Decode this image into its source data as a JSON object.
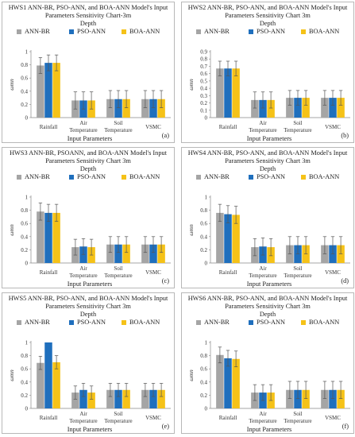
{
  "legend": [
    "ANN-BR",
    "PSO-ANN",
    "BOA-ANN"
  ],
  "colors": {
    "ANN-BR": "#a5a5a5",
    "PSO-ANN": "#1f6fbd",
    "BOA-ANN": "#f5c218"
  },
  "chart_data": [
    {
      "type": "bar",
      "title": "HWS1 ANN-BR, PSO-ANN, and BOA-ANN Model's Input Parameters Sensitivity Chart-3m",
      "subtitle": "Depth",
      "xlabel": "Input Parameters",
      "ylabel": "ωmn",
      "panel_label": "(a)",
      "ylim": [
        0,
        1
      ],
      "yticks": [
        "0",
        "0.2",
        "0.4",
        "0.6",
        "0.8",
        "1"
      ],
      "categories": [
        "Rainfall",
        "Air Temperature",
        "Soil Temperature",
        "VSMC"
      ],
      "series": [
        {
          "name": "ANN-BR",
          "values": [
            0.79,
            0.26,
            0.28,
            0.28
          ],
          "errors": [
            0.12,
            0.13,
            0.13,
            0.13
          ]
        },
        {
          "name": "PSO-ANN",
          "values": [
            0.83,
            0.26,
            0.28,
            0.28
          ],
          "errors": [
            0.12,
            0.13,
            0.13,
            0.13
          ]
        },
        {
          "name": "BOA-ANN",
          "values": [
            0.83,
            0.26,
            0.28,
            0.28
          ],
          "errors": [
            0.12,
            0.13,
            0.13,
            0.13
          ]
        }
      ]
    },
    {
      "type": "bar",
      "title": "HWS2 ANN-BR, PSO-ANN, and BOA-ANN Model's Input Parameters Sensitivity Chart 3m",
      "subtitle": "Depth",
      "xlabel": "Input Parameters",
      "ylabel": "ωmn",
      "panel_label": "(b)",
      "ylim": [
        0,
        0.9
      ],
      "yticks": [
        "0",
        "0.1",
        "0.2",
        "0.3",
        "0.4",
        "0.5",
        "0.6",
        "0.7",
        "0.8",
        "0.9"
      ],
      "categories": [
        "Rainfall",
        "Air Temperature",
        "Soil Temperature",
        "VSMC"
      ],
      "series": [
        {
          "name": "ANN-BR",
          "values": [
            0.67,
            0.24,
            0.27,
            0.27
          ],
          "errors": [
            0.1,
            0.11,
            0.1,
            0.1
          ]
        },
        {
          "name": "PSO-ANN",
          "values": [
            0.67,
            0.24,
            0.27,
            0.27
          ],
          "errors": [
            0.1,
            0.11,
            0.1,
            0.1
          ]
        },
        {
          "name": "BOA-ANN",
          "values": [
            0.67,
            0.24,
            0.27,
            0.27
          ],
          "errors": [
            0.1,
            0.11,
            0.1,
            0.1
          ]
        }
      ]
    },
    {
      "type": "bar",
      "title": "HWS3 ANN-BR, PSOANN, and BOA-ANN Model's Input Parameters Sensitivity Chart 3m",
      "subtitle": "Depth",
      "xlabel": "Input Parameters",
      "ylabel": "ωmn",
      "panel_label": "(c)",
      "ylim": [
        0,
        1
      ],
      "yticks": [
        "0",
        "0.2",
        "0.4",
        "0.6",
        "0.8",
        "1"
      ],
      "categories": [
        "Rainfall",
        "Air Temperature",
        "Soil Temperature",
        "VSMC"
      ],
      "series": [
        {
          "name": "ANN-BR",
          "values": [
            0.78,
            0.24,
            0.28,
            0.28
          ],
          "errors": [
            0.13,
            0.12,
            0.12,
            0.12
          ]
        },
        {
          "name": "PSO-ANN",
          "values": [
            0.76,
            0.25,
            0.28,
            0.28
          ],
          "errors": [
            0.13,
            0.12,
            0.12,
            0.12
          ]
        },
        {
          "name": "BOA-ANN",
          "values": [
            0.76,
            0.24,
            0.28,
            0.28
          ],
          "errors": [
            0.13,
            0.12,
            0.12,
            0.12
          ]
        }
      ]
    },
    {
      "type": "bar",
      "title": "HWS4 ANN-BR, PSO-ANN, and BOA-ANN Model's Input Parameters Sensitivity Chart 3m",
      "subtitle": "Depth",
      "xlabel": "Input Parameters",
      "ylabel": "ωmn",
      "panel_label": "(d)",
      "ylim": [
        0,
        1
      ],
      "yticks": [
        "0",
        "0.2",
        "0.4",
        "0.6",
        "0.8",
        "1"
      ],
      "categories": [
        "Rainfall",
        "Air Temperature",
        "Soil Temperature",
        "VSMC"
      ],
      "series": [
        {
          "name": "ANN-BR",
          "values": [
            0.76,
            0.24,
            0.27,
            0.27
          ],
          "errors": [
            0.13,
            0.13,
            0.13,
            0.13
          ]
        },
        {
          "name": "PSO-ANN",
          "values": [
            0.74,
            0.25,
            0.27,
            0.27
          ],
          "errors": [
            0.13,
            0.13,
            0.13,
            0.13
          ]
        },
        {
          "name": "BOA-ANN",
          "values": [
            0.73,
            0.24,
            0.27,
            0.27
          ],
          "errors": [
            0.13,
            0.13,
            0.13,
            0.13
          ]
        }
      ]
    },
    {
      "type": "bar",
      "title": "HWS5 ANN-BR, PSO-ANN, and BOA-ANN Model's Input Parameters Sensitivity Chart 3m",
      "subtitle": "Depth",
      "xlabel": "Input Parameters",
      "ylabel": "ωmn",
      "panel_label": "(e)",
      "ylim": [
        0,
        1
      ],
      "yticks": [
        "0",
        "0.2",
        "0.4",
        "0.6",
        "0.8",
        "1"
      ],
      "categories": [
        "Rainfall",
        "Air Temperature",
        "Soil Temperature",
        "VSMC"
      ],
      "series": [
        {
          "name": "ANN-BR",
          "values": [
            0.69,
            0.24,
            0.28,
            0.28
          ],
          "errors": [
            0.1,
            0.1,
            0.1,
            0.1
          ]
        },
        {
          "name": "PSO-ANN",
          "values": [
            1.0,
            0.28,
            0.28,
            0.28
          ],
          "errors": [
            0,
            0.1,
            0.1,
            0.1
          ]
        },
        {
          "name": "BOA-ANN",
          "values": [
            0.7,
            0.24,
            0.28,
            0.28
          ],
          "errors": [
            0.1,
            0.1,
            0.1,
            0.1
          ]
        }
      ]
    },
    {
      "type": "bar",
      "title": "HWS6 ANN-BR, PSO-ANN, and BOA-ANN Model's Input Parameters Sensitivity Chart 3m",
      "subtitle": "Depth",
      "xlabel": "Input Parameters",
      "ylabel": "ωmn",
      "panel_label": "(f)",
      "ylim": [
        0,
        1
      ],
      "yticks": [
        "0",
        "0.2",
        "0.4",
        "0.6",
        "0.8",
        "1"
      ],
      "categories": [
        "Rainfall",
        "Air Temperature",
        "Soil Temperature",
        "VSMC"
      ],
      "series": [
        {
          "name": "ANN-BR",
          "values": [
            0.81,
            0.24,
            0.28,
            0.28
          ],
          "errors": [
            0.12,
            0.12,
            0.13,
            0.13
          ]
        },
        {
          "name": "PSO-ANN",
          "values": [
            0.76,
            0.24,
            0.28,
            0.28
          ],
          "errors": [
            0.12,
            0.12,
            0.13,
            0.13
          ]
        },
        {
          "name": "BOA-ANN",
          "values": [
            0.75,
            0.24,
            0.28,
            0.28
          ],
          "errors": [
            0.12,
            0.12,
            0.13,
            0.13
          ]
        }
      ]
    }
  ]
}
